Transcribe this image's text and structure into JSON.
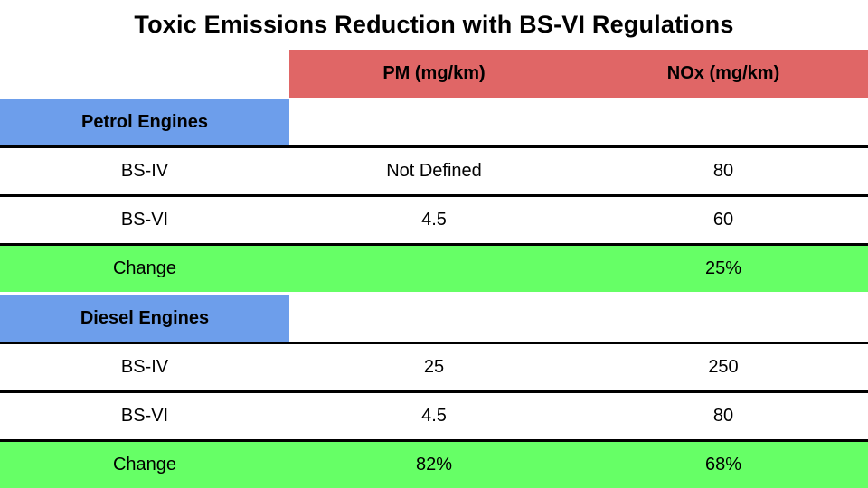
{
  "title": "Toxic Emissions Reduction with BS-VI Regulations",
  "colors": {
    "header_red": "#E06666",
    "section_blue": "#6D9EEB",
    "change_green": "#66FF66",
    "divider_black": "#000000",
    "text": "#000000"
  },
  "table": {
    "header": {
      "spacer": "",
      "pm": "PM (mg/km)",
      "nox": "NOx (mg/km)"
    },
    "rows": [
      {
        "label": "Petrol Engines",
        "pm": "",
        "nox": ""
      },
      {
        "label": "BS-IV",
        "pm": "Not Defined",
        "nox": "80"
      },
      {
        "label": "BS-VI",
        "pm": "4.5",
        "nox": "60"
      },
      {
        "label": "Change",
        "pm": "",
        "nox": "25%"
      },
      {
        "label": "Diesel Engines",
        "pm": "",
        "nox": ""
      },
      {
        "label": "BS-IV",
        "pm": "25",
        "nox": "250"
      },
      {
        "label": "BS-VI",
        "pm": "4.5",
        "nox": "80"
      },
      {
        "label": "Change",
        "pm": "82%",
        "nox": "68%"
      }
    ]
  },
  "chart_data": {
    "type": "table",
    "title": "Toxic Emissions Reduction with BS-VI Regulations",
    "columns": [
      "",
      "PM (mg/km)",
      "NOx (mg/km)"
    ],
    "sections": [
      {
        "name": "Petrol Engines",
        "rows": [
          [
            "BS-IV",
            "Not Defined",
            "80"
          ],
          [
            "BS-VI",
            "4.5",
            "60"
          ],
          [
            "Change",
            "",
            "25%"
          ]
        ]
      },
      {
        "name": "Diesel Engines",
        "rows": [
          [
            "BS-IV",
            "25",
            "250"
          ],
          [
            "BS-VI",
            "4.5",
            "80"
          ],
          [
            "Change",
            "82%",
            "68%"
          ]
        ]
      }
    ],
    "layout": {
      "grid": "horizontal black dividers between data rows",
      "legend": "none"
    }
  }
}
